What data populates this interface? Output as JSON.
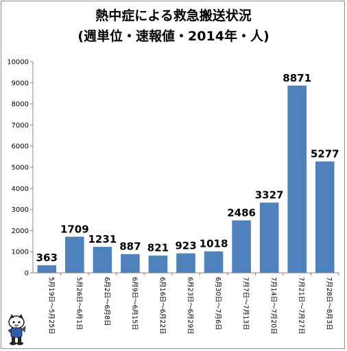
{
  "chart_data": {
    "type": "bar",
    "title_line1": "熱中症による救急搬送状況",
    "title_line2": "(週単位・速報値・2014年・人)",
    "categories": [
      "5月19日～5月25日",
      "5月26日～6月1日",
      "6月2日～6月8日",
      "6月9日～6月15日",
      "6月16日～6月22日",
      "6月23日～6月29日",
      "6月30日～7月6日",
      "7月7日～7月13日",
      "7月14日～7月20日",
      "7月21日～7月27日",
      "7月28日～8月3日"
    ],
    "values": [
      363,
      1709,
      1231,
      887,
      821,
      923,
      1018,
      2486,
      3327,
      8871,
      5277
    ],
    "ylim": [
      0,
      10000
    ],
    "yticks": [
      0,
      1000,
      2000,
      3000,
      4000,
      5000,
      6000,
      7000,
      8000,
      9000,
      10000
    ],
    "xlabel": "",
    "ylabel": "",
    "grid": false,
    "legend": "none",
    "bar_color": "#4f81bd"
  }
}
